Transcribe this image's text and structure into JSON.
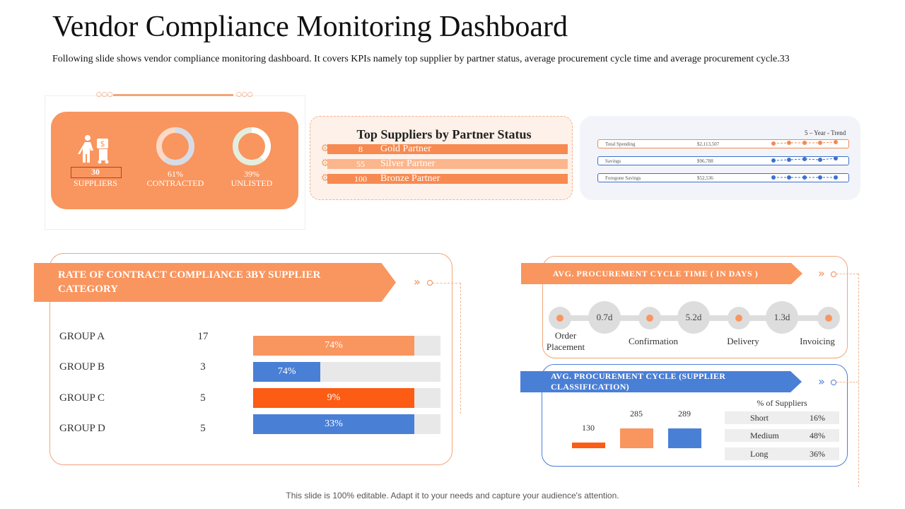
{
  "title": "Vendor Compliance Monitoring Dashboard",
  "subtitle": "Following slide shows vendor compliance monitoring dashboard. It covers KPIs namely top supplier by partner status, average procurement cycle time and average procurement cycle.33",
  "footer": "This slide is 100% editable. Adapt it to your needs and capture your audience's attention.",
  "kpis": {
    "suppliers_value": "30",
    "suppliers_label": "SUPPLIERS",
    "contracted_value": "61%",
    "contracted_label": "CONTRACTED",
    "contracted_fraction": 0.61,
    "unlisted_value": "39%",
    "unlisted_label": "UNLISTED",
    "unlisted_fraction": 0.39,
    "icon": "delivery-person-icon"
  },
  "partners": {
    "title": "Top Suppliers by Partner Status",
    "rows": [
      {
        "count": "8",
        "label": "Gold Partner",
        "color": "#f78a50"
      },
      {
        "count": "55",
        "label": "Silver Partner",
        "color": "#fbb68e"
      },
      {
        "count": "100",
        "label": "Bronze Partner",
        "color": "#f78a50"
      }
    ]
  },
  "trend": {
    "heading": "5 – Year - Trend",
    "rows": [
      {
        "name": "Total Spending",
        "value": "$2,113,507",
        "color": "#f08a55"
      },
      {
        "name": "Savings",
        "value": "$96,788",
        "color": "#3d6fcf"
      },
      {
        "name": "Foregone Savings",
        "value": "$52,536",
        "color": "#3d6fcf"
      }
    ]
  },
  "compliance": {
    "banner": "RATE OF CONTRACT COMPLIANCE 3BY SUPPLIER CATEGORY",
    "groups": [
      {
        "name": "GROUP A",
        "count": "17",
        "pct_label": "74%",
        "fill": 0.86,
        "color": "#f9955e"
      },
      {
        "name": "GROUP B",
        "count": "3",
        "pct_label": "74%",
        "fill": 0.36,
        "color": "#4a7fd6"
      },
      {
        "name": "GROUP C",
        "count": "5",
        "pct_label": "9%",
        "fill": 0.86,
        "color": "#fc5c14"
      },
      {
        "name": "GROUP D",
        "count": "5",
        "pct_label": "33%",
        "fill": 0.86,
        "color": "#4a7fd6"
      }
    ]
  },
  "cycle_time": {
    "banner": "AVG. PROCUREMENT  CYCLE  TIME  ( IN DAYS )",
    "stages": [
      "Order Placement",
      "Confirmation",
      "Delivery",
      "Invoicing"
    ],
    "durations": [
      "0.7d",
      "5.2d",
      "1.3d"
    ]
  },
  "classification": {
    "banner": "AVG. PROCUREMENT  CYCLE  (SUPPLIER CLASSIFICATION)",
    "pct_heading": "% of Suppliers",
    "rows": [
      {
        "category": "Short",
        "pct": "16%"
      },
      {
        "category": "Medium",
        "pct": "48%"
      },
      {
        "category": "Long",
        "pct": "36%"
      }
    ]
  },
  "chart_data": {
    "type": "bar",
    "categories": [
      "Short",
      "Medium",
      "Long"
    ],
    "values": [
      130,
      285,
      289
    ],
    "colors": [
      "#fc5c14",
      "#f9955e",
      "#4a7fd6"
    ],
    "title": "",
    "xlabel": "",
    "ylabel": ""
  }
}
